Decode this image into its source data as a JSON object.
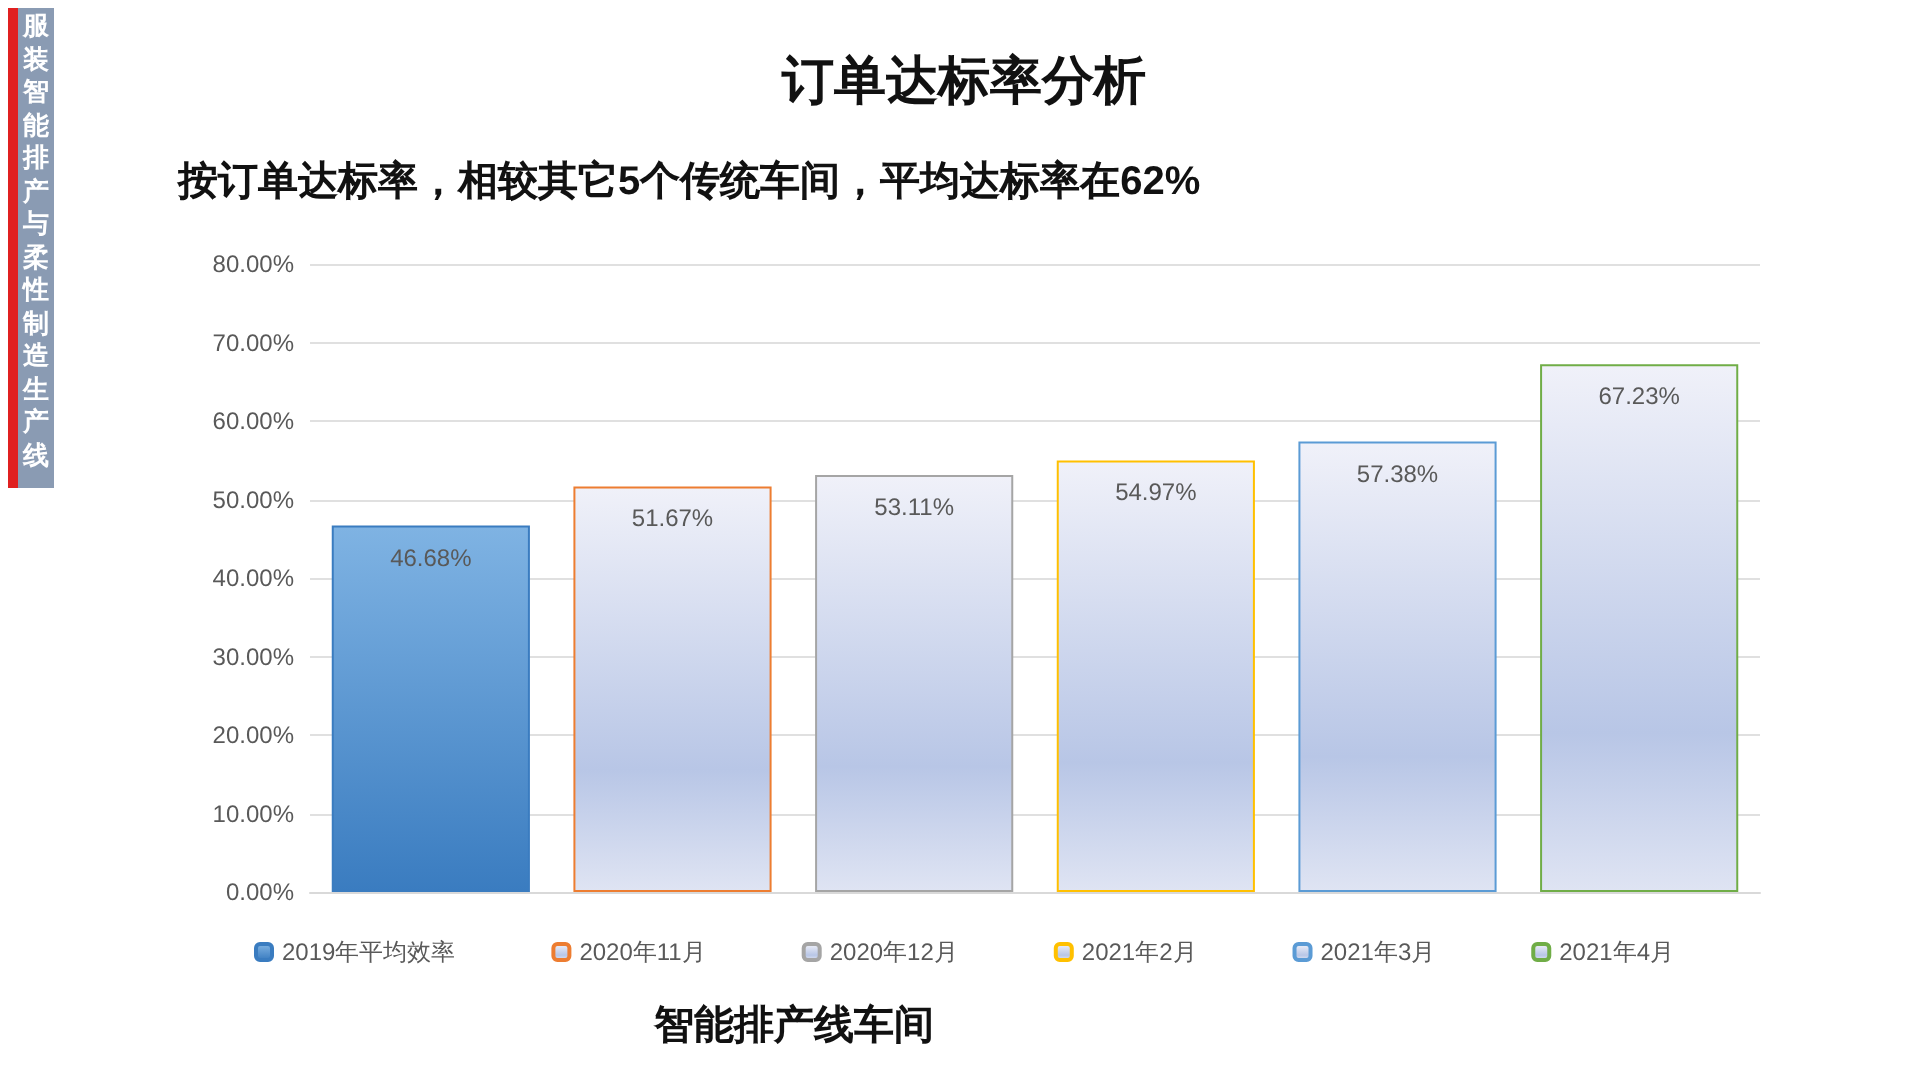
{
  "chart_data": {
    "type": "bar",
    "title": "订单达标率分析",
    "subtitle": "按订单达标率，相较其它5个传统车间，平均达标率在62%",
    "xlabel": "智能排产线车间",
    "annotations": [
      "服装智能排产与柔性制造生产线"
    ],
    "categories": [
      null,
      null,
      null,
      null,
      null,
      null
    ],
    "series": [
      {
        "name": "2019年平均效率",
        "color": "#3a7cc0",
        "values": [
          46.68,
          null,
          null,
          null,
          null,
          null
        ],
        "value_labels": [
          "46.68%",
          null,
          null,
          null,
          null,
          null
        ]
      },
      {
        "name": "2020年11月",
        "color": "#ed7d31",
        "values": [
          null,
          51.67,
          null,
          null,
          null,
          null
        ],
        "value_labels": [
          null,
          "51.67%",
          null,
          null,
          null,
          null
        ]
      },
      {
        "name": "2020年12月",
        "color": "#a5a5a5",
        "values": [
          null,
          null,
          53.11,
          null,
          null,
          null
        ],
        "value_labels": [
          null,
          null,
          "53.11%",
          null,
          null,
          null
        ]
      },
      {
        "name": "2021年2月",
        "color": "#ffc000",
        "values": [
          null,
          null,
          null,
          54.97,
          null,
          null
        ],
        "value_labels": [
          null,
          null,
          null,
          "54.97%",
          null,
          null
        ]
      },
      {
        "name": "2021年3月",
        "color": "#5b9bd5",
        "values": [
          null,
          null,
          null,
          null,
          57.38,
          null
        ],
        "value_labels": [
          null,
          null,
          null,
          null,
          "57.38%",
          null
        ]
      },
      {
        "name": "2021年4月",
        "color": "#70ad47",
        "values": [
          null,
          null,
          null,
          null,
          null,
          67.23
        ],
        "value_labels": [
          null,
          null,
          null,
          null,
          null,
          "67.23%"
        ]
      }
    ],
    "ylim": [
      0,
      80
    ],
    "yticks": [
      {
        "value": 0,
        "label": "0.00%"
      },
      {
        "value": 10,
        "label": "10.00%"
      },
      {
        "value": 20,
        "label": "20.00%"
      },
      {
        "value": 30,
        "label": "30.00%"
      },
      {
        "value": 40,
        "label": "40.00%"
      },
      {
        "value": 50,
        "label": "50.00%"
      },
      {
        "value": 60,
        "label": "60.00%"
      },
      {
        "value": 70,
        "label": "70.00%"
      },
      {
        "value": 80,
        "label": "80.00%"
      }
    ],
    "grid": "y",
    "legend": "bottom"
  }
}
